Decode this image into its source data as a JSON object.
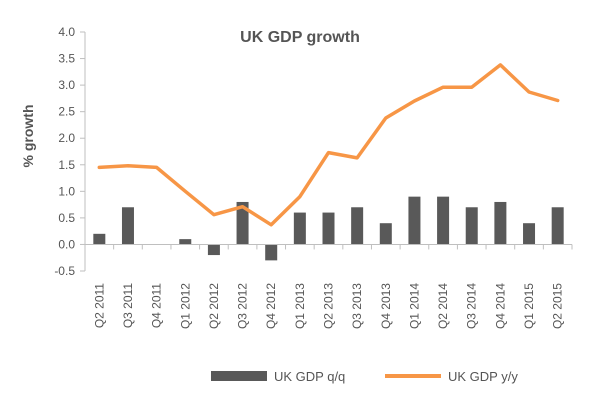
{
  "chart_data": {
    "type": "bar+line",
    "title": "UK GDP growth",
    "xlabel": "",
    "ylabel": "% growth",
    "ylim": [
      -0.5,
      4.0
    ],
    "yticks": [
      -0.5,
      0.0,
      0.5,
      1.0,
      1.5,
      2.0,
      2.5,
      3.0,
      3.5,
      4.0
    ],
    "ytick_labels": [
      "-0.5",
      "0.0",
      "0.5",
      "1.0",
      "1.5",
      "2.0",
      "2.5",
      "3.0",
      "3.5",
      "4.0"
    ],
    "grid": false,
    "legend_position": "bottom",
    "categories": [
      "Q2 2011",
      "Q3 2011",
      "Q4 2011",
      "Q1 2012",
      "Q2 2012",
      "Q3 2012",
      "Q4 2012",
      "Q1 2013",
      "Q2 2013",
      "Q3 2013",
      "Q4 2013",
      "Q1 2014",
      "Q2 2014",
      "Q3 2014",
      "Q4 2014",
      "Q1 2015",
      "Q2 2015"
    ],
    "series": [
      {
        "name": "UK GDP q/q",
        "type": "bar",
        "color": "#595959",
        "values": [
          0.2,
          0.7,
          0.0,
          0.1,
          -0.2,
          0.8,
          -0.3,
          0.6,
          0.6,
          0.7,
          0.4,
          0.9,
          0.9,
          0.7,
          0.8,
          0.4,
          0.7
        ]
      },
      {
        "name": "UK GDP y/y",
        "type": "line",
        "color": "#F79646",
        "values": [
          1.45,
          1.48,
          1.45,
          1.0,
          0.56,
          0.71,
          0.37,
          0.9,
          1.73,
          1.63,
          2.38,
          2.7,
          2.96,
          2.96,
          3.38,
          2.87,
          2.71
        ]
      }
    ]
  }
}
